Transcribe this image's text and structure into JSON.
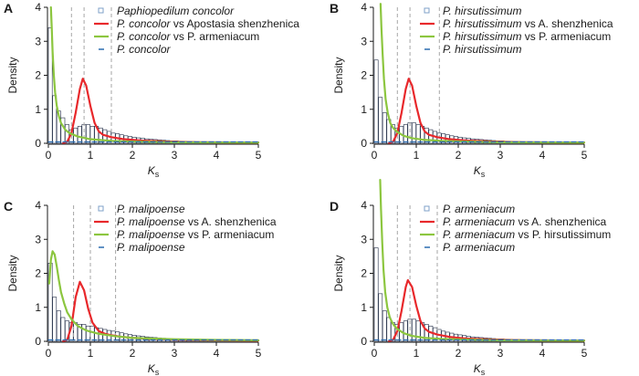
{
  "chart_data": [
    {
      "panel": "A",
      "type": "histogram_density",
      "xlabel": "K",
      "xlabel_sub": "s",
      "ylabel": "Density",
      "xlim": [
        0,
        5
      ],
      "ylim": [
        0,
        4
      ],
      "xticks": [
        "0",
        "1",
        "2",
        "3",
        "4",
        "5"
      ],
      "yticks": [
        "0",
        "1",
        "2",
        "3",
        "4"
      ],
      "vlines": [
        0.55,
        0.85,
        1.5
      ],
      "histogram": [
        3.4,
        1.4,
        0.95,
        0.75,
        0.55,
        0.4,
        0.45,
        0.5,
        0.55,
        0.55,
        0.5,
        0.5,
        0.45,
        0.4,
        0.35,
        0.3,
        0.28,
        0.25,
        0.22,
        0.2,
        0.18,
        0.16,
        0.15,
        0.13,
        0.12,
        0.11,
        0.1,
        0.09,
        0.08,
        0.07,
        0.07,
        0.06,
        0.06,
        0.05,
        0.05,
        0.04,
        0.04,
        0.04,
        0.03,
        0.03,
        0.03,
        0.03,
        0.02,
        0.02,
        0.02,
        0.02,
        0.02,
        0.02,
        0.02,
        0.02
      ],
      "series": [
        {
          "name": "Paphiopedilum concolor",
          "name_italic": "Paphiopedilum concolor",
          "name_rest": "",
          "kind": "histogram",
          "color": "#7fa0c8"
        },
        {
          "name": "P. concolor vs Apostasia shenzhenica",
          "name_italic": "P. concolor",
          "name_rest": " vs Apostasia shenzhenica",
          "kind": "peak",
          "color": "#e8282b",
          "peak_x": 0.82,
          "peak_y": 1.9,
          "x": [
            0.35,
            0.45,
            0.55,
            0.65,
            0.75,
            0.82,
            0.9,
            1.0,
            1.1,
            1.2,
            1.3,
            1.5,
            1.8,
            2.2,
            2.8,
            3.5,
            5.0
          ],
          "y": [
            0.0,
            0.05,
            0.3,
            0.9,
            1.6,
            1.9,
            1.7,
            1.1,
            0.6,
            0.35,
            0.25,
            0.18,
            0.12,
            0.08,
            0.05,
            0.03,
            0.02
          ]
        },
        {
          "name": "P. concolor vs P. armeniacum",
          "name_italic": "P. concolor",
          "name_rest": " vs P. armeniacum",
          "kind": "decay",
          "color": "#8cc63f",
          "x": [
            0.06,
            0.08,
            0.1,
            0.13,
            0.16,
            0.2,
            0.25,
            0.3,
            0.4,
            0.5,
            0.7,
            1.0,
            1.5,
            2.0,
            3.0,
            5.0
          ],
          "y": [
            4.0,
            3.4,
            2.7,
            2.0,
            1.5,
            1.1,
            0.8,
            0.6,
            0.4,
            0.3,
            0.2,
            0.12,
            0.07,
            0.05,
            0.03,
            0.02
          ]
        },
        {
          "name": "P. concolor",
          "name_italic": "P. concolor",
          "name_rest": "",
          "kind": "fitted",
          "color": "#2b6cb0",
          "x": [
            0.0,
            0.5,
            1.0,
            2.0,
            3.0,
            4.0,
            5.0
          ],
          "y": [
            0.04,
            0.04,
            0.04,
            0.04,
            0.04,
            0.04,
            0.04
          ]
        }
      ]
    },
    {
      "panel": "B",
      "type": "histogram_density",
      "xlabel": "K",
      "xlabel_sub": "s",
      "ylabel": "Density",
      "xlim": [
        0,
        5
      ],
      "ylim": [
        0,
        4
      ],
      "xticks": [
        "0",
        "1",
        "2",
        "3",
        "4",
        "5"
      ],
      "yticks": [
        "0",
        "1",
        "2",
        "3",
        "4"
      ],
      "vlines": [
        0.55,
        0.85,
        1.55
      ],
      "histogram": [
        2.45,
        1.35,
        0.9,
        0.7,
        0.55,
        0.45,
        0.5,
        0.55,
        0.6,
        0.6,
        0.55,
        0.5,
        0.45,
        0.4,
        0.35,
        0.3,
        0.28,
        0.25,
        0.22,
        0.2,
        0.18,
        0.16,
        0.15,
        0.13,
        0.12,
        0.11,
        0.1,
        0.09,
        0.08,
        0.07,
        0.07,
        0.06,
        0.06,
        0.05,
        0.05,
        0.04,
        0.04,
        0.04,
        0.03,
        0.03,
        0.03,
        0.03,
        0.02,
        0.02,
        0.02,
        0.02,
        0.02,
        0.02,
        0.02,
        0.02
      ],
      "series": [
        {
          "name": "P. hirsutissimum",
          "name_italic": "P. hirsutissimum",
          "name_rest": "",
          "kind": "histogram",
          "color": "#7fa0c8"
        },
        {
          "name": "P. hirsutissimum vs A. shenzhenica",
          "name_italic": "P. hirsutissimum",
          "name_rest": " vs A. shenzhenica",
          "kind": "peak",
          "color": "#e8282b",
          "peak_x": 0.82,
          "peak_y": 1.9,
          "x": [
            0.35,
            0.45,
            0.55,
            0.65,
            0.75,
            0.82,
            0.9,
            1.0,
            1.1,
            1.2,
            1.3,
            1.5,
            1.8,
            2.2,
            2.8,
            3.5,
            5.0
          ],
          "y": [
            0.0,
            0.05,
            0.3,
            0.9,
            1.6,
            1.9,
            1.7,
            1.1,
            0.6,
            0.35,
            0.25,
            0.18,
            0.12,
            0.08,
            0.05,
            0.03,
            0.02
          ]
        },
        {
          "name": "P. hirsutissimum vs P. armeniacum",
          "name_italic": "P. hirsutissimum",
          "name_rest": " vs P. armeniacum",
          "kind": "decay",
          "color": "#8cc63f",
          "x": [
            0.15,
            0.17,
            0.2,
            0.23,
            0.27,
            0.32,
            0.38,
            0.45,
            0.55,
            0.7,
            0.9,
            1.2,
            1.6,
            2.2,
            3.0,
            5.0
          ],
          "y": [
            4.1,
            3.4,
            2.6,
            1.9,
            1.3,
            0.9,
            0.6,
            0.45,
            0.33,
            0.22,
            0.15,
            0.1,
            0.07,
            0.05,
            0.03,
            0.02
          ]
        },
        {
          "name": "P. hirsutissimum",
          "name_italic": "P. hirsutissimum",
          "name_rest": "",
          "kind": "fitted",
          "color": "#2b6cb0",
          "x": [
            0.0,
            0.5,
            1.0,
            2.0,
            3.0,
            4.0,
            5.0
          ],
          "y": [
            0.04,
            0.04,
            0.04,
            0.04,
            0.04,
            0.04,
            0.04
          ]
        }
      ]
    },
    {
      "panel": "C",
      "type": "histogram_density",
      "xlabel": "K",
      "xlabel_sub": "s",
      "ylabel": "Density",
      "xlim": [
        0,
        5
      ],
      "ylim": [
        0,
        4
      ],
      "xticks": [
        "0",
        "1",
        "2",
        "3",
        "4",
        "5"
      ],
      "yticks": [
        "0",
        "1",
        "2",
        "3",
        "4"
      ],
      "vlines": [
        0.6,
        1.0,
        1.6
      ],
      "histogram": [
        2.3,
        1.3,
        0.9,
        0.7,
        0.6,
        0.55,
        0.55,
        0.5,
        0.5,
        0.45,
        0.45,
        0.4,
        0.38,
        0.35,
        0.32,
        0.3,
        0.28,
        0.25,
        0.22,
        0.2,
        0.18,
        0.16,
        0.15,
        0.13,
        0.12,
        0.11,
        0.1,
        0.09,
        0.08,
        0.07,
        0.07,
        0.06,
        0.06,
        0.05,
        0.05,
        0.04,
        0.04,
        0.04,
        0.03,
        0.03,
        0.03,
        0.03,
        0.02,
        0.02,
        0.02,
        0.02,
        0.02,
        0.02,
        0.02,
        0.02
      ],
      "series": [
        {
          "name": "P. malipoense",
          "name_italic": "P. malipoense",
          "name_rest": "",
          "kind": "histogram",
          "color": "#7fa0c8"
        },
        {
          "name": "P. malipoense vs A. shenzhenica",
          "name_italic": "P. malipoense",
          "name_rest": " vs A. shenzhenica",
          "kind": "peak",
          "color": "#e8282b",
          "peak_x": 0.75,
          "peak_y": 1.75,
          "x": [
            0.35,
            0.45,
            0.55,
            0.65,
            0.75,
            0.85,
            0.95,
            1.05,
            1.2,
            1.35,
            1.5,
            1.7,
            2.0,
            2.5,
            3.0,
            4.0,
            5.0
          ],
          "y": [
            0.0,
            0.05,
            0.45,
            1.3,
            1.75,
            1.5,
            0.95,
            0.55,
            0.3,
            0.22,
            0.18,
            0.14,
            0.1,
            0.07,
            0.05,
            0.03,
            0.02
          ]
        },
        {
          "name": "P. malipoense vs P. armeniacum",
          "name_italic": "P. malipoense",
          "name_rest": " vs P. armeniacum",
          "kind": "decay",
          "color": "#8cc63f",
          "x": [
            0.02,
            0.06,
            0.1,
            0.15,
            0.2,
            0.25,
            0.3,
            0.38,
            0.45,
            0.55,
            0.7,
            0.9,
            1.2,
            1.6,
            2.0,
            3.0,
            4.0,
            5.0
          ],
          "y": [
            1.7,
            2.4,
            2.65,
            2.55,
            2.2,
            1.8,
            1.45,
            1.1,
            0.85,
            0.65,
            0.45,
            0.32,
            0.22,
            0.15,
            0.1,
            0.06,
            0.04,
            0.03
          ]
        },
        {
          "name": "P. malipoense",
          "name_italic": "P. malipoense",
          "name_rest": "",
          "kind": "fitted",
          "color": "#2b6cb0",
          "x": [
            0.0,
            0.5,
            1.0,
            2.0,
            3.0,
            4.0,
            5.0
          ],
          "y": [
            0.04,
            0.04,
            0.04,
            0.04,
            0.04,
            0.04,
            0.04
          ]
        }
      ]
    },
    {
      "panel": "D",
      "type": "histogram_density",
      "xlabel": "K",
      "xlabel_sub": "s",
      "ylabel": "Density",
      "xlim": [
        0,
        5
      ],
      "ylim": [
        0,
        4
      ],
      "xticks": [
        "0",
        "1",
        "2",
        "3",
        "4",
        "5"
      ],
      "yticks": [
        "0",
        "1",
        "2",
        "3",
        "4"
      ],
      "vlines": [
        0.55,
        0.85,
        1.5
      ],
      "histogram": [
        2.75,
        1.4,
        0.9,
        0.7,
        0.55,
        0.5,
        0.55,
        0.6,
        0.65,
        0.65,
        0.6,
        0.55,
        0.5,
        0.45,
        0.4,
        0.35,
        0.3,
        0.27,
        0.24,
        0.21,
        0.19,
        0.17,
        0.15,
        0.13,
        0.12,
        0.11,
        0.1,
        0.09,
        0.08,
        0.07,
        0.07,
        0.06,
        0.06,
        0.05,
        0.05,
        0.04,
        0.04,
        0.04,
        0.03,
        0.03,
        0.03,
        0.03,
        0.02,
        0.02,
        0.02,
        0.02,
        0.02,
        0.02,
        0.02,
        0.02
      ],
      "series": [
        {
          "name": "P. armeniacum",
          "name_italic": "P. armeniacum",
          "name_rest": "",
          "kind": "histogram",
          "color": "#7fa0c8"
        },
        {
          "name": "P. armeniacum vs A. shenzhenica",
          "name_italic": "P. armeniacum",
          "name_rest": " vs A. shenzhenica",
          "kind": "peak",
          "color": "#e8282b",
          "peak_x": 0.8,
          "peak_y": 1.8,
          "x": [
            0.35,
            0.45,
            0.55,
            0.65,
            0.75,
            0.8,
            0.9,
            1.0,
            1.1,
            1.2,
            1.3,
            1.5,
            1.8,
            2.2,
            2.8,
            3.5,
            5.0
          ],
          "y": [
            0.0,
            0.05,
            0.3,
            0.9,
            1.6,
            1.8,
            1.6,
            1.05,
            0.6,
            0.38,
            0.28,
            0.2,
            0.13,
            0.08,
            0.05,
            0.03,
            0.02
          ]
        },
        {
          "name": "P. armeniacum vs P. hirsutissimum",
          "name_italic": "P. armeniacum",
          "name_rest": " vs P. hirsutissimum",
          "kind": "decay",
          "color": "#8cc63f",
          "x": [
            0.14,
            0.16,
            0.19,
            0.22,
            0.26,
            0.31,
            0.37,
            0.45,
            0.55,
            0.7,
            0.9,
            1.2,
            1.6,
            2.2,
            3.0,
            5.0
          ],
          "y": [
            4.75,
            3.9,
            2.9,
            2.1,
            1.45,
            1.0,
            0.7,
            0.5,
            0.36,
            0.24,
            0.16,
            0.1,
            0.07,
            0.05,
            0.03,
            0.02
          ]
        },
        {
          "name": "P. armeniacum",
          "name_italic": "P. armeniacum",
          "name_rest": "",
          "kind": "fitted",
          "color": "#2b6cb0",
          "x": [
            0.0,
            0.5,
            1.0,
            2.0,
            3.0,
            4.0,
            5.0
          ],
          "y": [
            0.04,
            0.04,
            0.04,
            0.04,
            0.04,
            0.04,
            0.04
          ]
        }
      ]
    }
  ]
}
